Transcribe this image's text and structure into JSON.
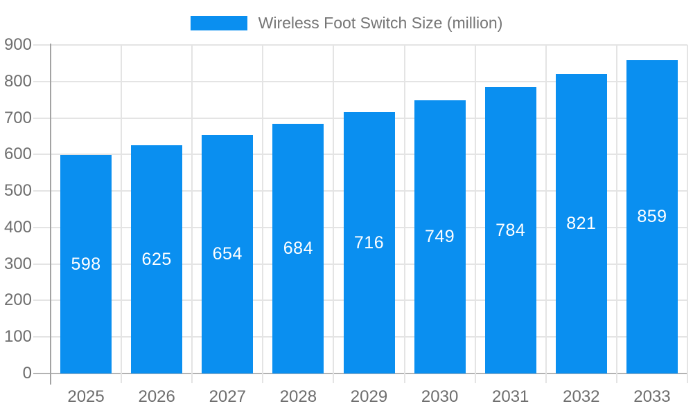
{
  "legend": {
    "label": "Wireless Foot Switch Size (million)"
  },
  "colors": {
    "bar": "#0a8ff0",
    "bar_label": "#ffffff",
    "axis_text": "#6e6e6e",
    "y_axis_line": "#a3a3a3",
    "x_axis_line": "#b3b3b3",
    "grid_line": "#e4e4e4"
  },
  "chart_data": {
    "type": "bar",
    "title": "Wireless Foot Switch Size (million)",
    "categories": [
      "2025",
      "2026",
      "2027",
      "2028",
      "2029",
      "2030",
      "2031",
      "2032",
      "2033"
    ],
    "series": [
      {
        "name": "Wireless Foot Switch Size (million)",
        "color": "#0a8ff0",
        "values": [
          598,
          625,
          654,
          684,
          716,
          749,
          784,
          821,
          859
        ]
      }
    ],
    "xlabel": "",
    "ylabel": "",
    "ylim": [
      0,
      900
    ],
    "yticks": [
      0,
      100,
      200,
      300,
      400,
      500,
      600,
      700,
      800,
      900
    ],
    "grid": true,
    "legend_position": "top",
    "value_label_position": "center"
  }
}
